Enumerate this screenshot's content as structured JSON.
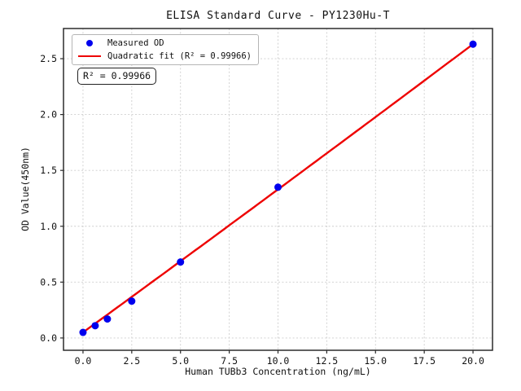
{
  "chart_data": {
    "type": "scatter",
    "title": "ELISA Standard Curve - PY1230Hu-T",
    "xlabel": "Human TUBb3 Concentration (ng/mL)",
    "ylabel": "OD Value(450nm)",
    "xlim": [
      -1,
      21
    ],
    "ylim": [
      -0.11,
      2.77
    ],
    "xticks": [
      0,
      2.5,
      5,
      7.5,
      10,
      12.5,
      15,
      17.5,
      20
    ],
    "yticks": [
      0,
      0.5,
      1,
      1.5,
      2,
      2.5
    ],
    "grid": true,
    "legend_position": "upper left",
    "series": [
      {
        "name": "Measured OD",
        "type": "scatter",
        "color": "#0000ee",
        "x": [
          0,
          0.625,
          1.25,
          2.5,
          5,
          10,
          20
        ],
        "y": [
          0.05,
          0.11,
          0.17,
          0.33,
          0.68,
          1.35,
          2.63
        ]
      },
      {
        "name": "Quadratic fit (R² = 0.99966)",
        "type": "line",
        "fit": "quadratic",
        "color": "#ee0000",
        "coefficients": {
          "a0": 0.05,
          "a1": 0.127,
          "a2": 0.0001
        },
        "x_range": [
          0,
          20
        ],
        "r_squared": 0.99966
      }
    ]
  },
  "legend": {
    "items": [
      {
        "label": "Measured OD"
      },
      {
        "label": "Quadratic fit (R² = 0.99966)"
      }
    ]
  },
  "annotation": {
    "text": "R² = 0.99966"
  }
}
